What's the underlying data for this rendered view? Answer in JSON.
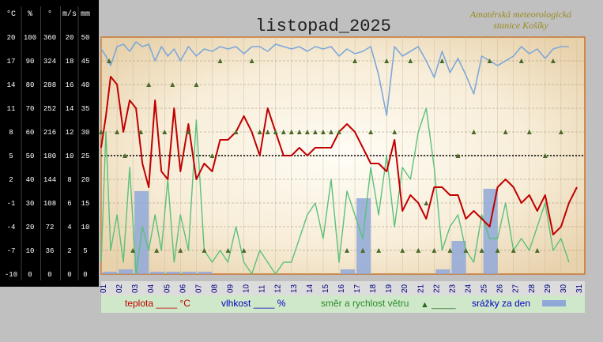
{
  "chart_data": {
    "type": "line",
    "title": "listopad_2025",
    "station": [
      "Amatérská meteorologická",
      "stanice Košíky"
    ],
    "axes": [
      {
        "unit": "°C",
        "ticks": [
          "20",
          "17",
          "14",
          "11",
          "8",
          "5",
          "2",
          "-1",
          "-4",
          "-7",
          "-10"
        ]
      },
      {
        "unit": "%",
        "ticks": [
          "100",
          "90",
          "80",
          "70",
          "60",
          "50",
          "40",
          "30",
          "20",
          "10",
          "0"
        ]
      },
      {
        "unit": "°",
        "ticks": [
          "360",
          "324",
          "288",
          "252",
          "216",
          "180",
          "144",
          "108",
          "72",
          "36",
          "0"
        ]
      },
      {
        "unit": "m/s",
        "ticks": [
          "20",
          "18",
          "16",
          "14",
          "12",
          "10",
          "8",
          "6",
          "4",
          "2",
          "0"
        ]
      },
      {
        "unit": "mm",
        "ticks": [
          "50",
          "45",
          "40",
          "35",
          "30",
          "25",
          "20",
          "15",
          "10",
          "5",
          "0"
        ]
      }
    ],
    "x_ticks": [
      "01",
      "02",
      "03",
      "04",
      "05",
      "06",
      "07",
      "08",
      "09",
      "10",
      "11",
      "12",
      "13",
      "14",
      "15",
      "16",
      "17",
      "18",
      "19",
      "20",
      "21",
      "22",
      "23",
      "24",
      "25",
      "26",
      "27",
      "28",
      "29",
      "30",
      "31"
    ],
    "legend": [
      {
        "label": "teplota ____ °C",
        "color": "#c00000"
      },
      {
        "label": "vlhkost ____ %",
        "color": "#0000c0"
      },
      {
        "label": "směr a rychlost větru",
        "marker": "▲ _____",
        "color": "#2a8a2a"
      },
      {
        "label": "srážky za den",
        "color": "#8fa8d8"
      }
    ],
    "series": [
      {
        "name": "teplota",
        "unit": "°C",
        "color": "#c00000",
        "x": [
          1.0,
          1.3,
          1.6,
          2.0,
          2.4,
          2.8,
          3.2,
          3.6,
          4.0,
          4.4,
          4.8,
          5.2,
          5.6,
          6.0,
          6.5,
          7.0,
          7.5,
          8.0,
          8.5,
          9.0,
          9.5,
          10.0,
          10.5,
          11.0,
          11.5,
          12.0,
          12.5,
          13.0,
          13.5,
          14.0,
          14.5,
          15.0,
          15.5,
          16.0,
          16.5,
          17.0,
          17.5,
          18.0,
          18.5,
          19.0,
          19.5,
          20.0,
          20.5,
          21.0,
          21.5,
          22.0,
          22.5,
          23.0,
          23.5,
          24.0,
          24.5,
          25.0,
          25.5,
          26.0,
          26.5,
          27.0,
          27.5,
          28.0,
          28.5,
          29.0,
          29.5,
          30.0,
          30.5,
          31.0
        ],
        "y": [
          6,
          10,
          15,
          14,
          8,
          12,
          11,
          4,
          1,
          12,
          3,
          2,
          11,
          3,
          9,
          2,
          4,
          3,
          7,
          7,
          8,
          10,
          8,
          5,
          11,
          8,
          5,
          5,
          6,
          5,
          6,
          6,
          6,
          8,
          9,
          8,
          6,
          4,
          4,
          3,
          7,
          -2,
          0,
          -1,
          -3,
          1,
          1,
          0,
          0,
          -3,
          -2,
          -3,
          -4,
          1,
          2,
          1,
          -1,
          0,
          -2,
          0,
          -5,
          -4,
          -1,
          1
        ]
      },
      {
        "name": "vlhkost",
        "unit": "%",
        "color": "#7ea8d8",
        "x": [
          1.0,
          1.3,
          1.6,
          2.0,
          2.4,
          2.8,
          3.2,
          3.6,
          4.0,
          4.4,
          4.8,
          5.2,
          5.6,
          6.0,
          6.5,
          7.0,
          7.5,
          8.0,
          8.5,
          9.0,
          9.5,
          10.0,
          10.5,
          11.0,
          11.5,
          12.0,
          12.5,
          13.0,
          13.5,
          14.0,
          14.5,
          15.0,
          15.5,
          16.0,
          16.5,
          17.0,
          17.5,
          18.0,
          18.5,
          19.0,
          19.5,
          20.0,
          20.5,
          21.0,
          21.5,
          22.0,
          22.5,
          23.0,
          23.5,
          24.0,
          24.5,
          25.0,
          25.5,
          26.0,
          26.5,
          27.0,
          27.5,
          28.0,
          28.5,
          29.0,
          29.5,
          30.0,
          30.5
        ],
        "y": [
          95,
          92,
          88,
          96,
          97,
          94,
          98,
          96,
          97,
          90,
          96,
          92,
          95,
          90,
          96,
          92,
          95,
          94,
          96,
          95,
          96,
          93,
          96,
          96,
          94,
          97,
          96,
          95,
          96,
          94,
          96,
          95,
          96,
          92,
          95,
          93,
          94,
          96,
          84,
          67,
          96,
          92,
          94,
          96,
          90,
          83,
          94,
          85,
          91,
          84,
          76,
          92,
          90,
          88,
          90,
          92,
          96,
          93,
          95,
          91,
          95,
          96,
          96
        ]
      },
      {
        "name": "rychlost větru",
        "unit": "m/s",
        "color": "#5cc07a",
        "x": [
          1.0,
          1.3,
          1.6,
          2.0,
          2.4,
          2.8,
          3.2,
          3.6,
          4.0,
          4.4,
          4.8,
          5.2,
          5.6,
          6.0,
          6.5,
          7.0,
          7.5,
          8.0,
          8.5,
          9.0,
          9.5,
          10.0,
          10.5,
          11.0,
          11.5,
          12.0,
          12.5,
          13.0,
          13.5,
          14.0,
          14.5,
          15.0,
          15.5,
          16.0,
          16.5,
          17.0,
          17.5,
          18.0,
          18.5,
          19.0,
          19.5,
          20.0,
          20.5,
          21.0,
          21.5,
          22.0,
          22.5,
          23.0,
          23.5,
          24.0,
          24.5,
          25.0,
          25.5,
          26.0,
          26.5,
          27.0,
          27.5,
          28.0,
          28.5,
          29.0,
          29.5,
          30.0,
          30.5
        ],
        "y": [
          1,
          12,
          2,
          5,
          1,
          9,
          0,
          4,
          2,
          5,
          2,
          8,
          1,
          5,
          2,
          13,
          2,
          1,
          2,
          1,
          4,
          1,
          0,
          2,
          1,
          0,
          1,
          1,
          3,
          5,
          6,
          3,
          8,
          1,
          7,
          5,
          3,
          9,
          5,
          10,
          4,
          9,
          8,
          12,
          14,
          9,
          2,
          4,
          5,
          2,
          1,
          5,
          3,
          3,
          6,
          2,
          3,
          2,
          4,
          6,
          2,
          3,
          1
        ]
      },
      {
        "name": "srážky za den",
        "unit": "mm",
        "x": [
          1,
          2,
          3,
          4,
          5,
          6,
          7,
          8,
          9,
          10,
          11,
          12,
          13,
          14,
          15,
          16,
          17,
          18,
          19,
          20,
          21,
          22,
          23,
          24,
          25,
          26,
          27,
          28,
          29,
          30,
          31
        ],
        "y": [
          0.5,
          1,
          17.5,
          0.5,
          0.5,
          0.5,
          0.5,
          0,
          0,
          0,
          0,
          0,
          0,
          0,
          0,
          1,
          16,
          0,
          0,
          0,
          0,
          1,
          7,
          0,
          18,
          0,
          0,
          0,
          0,
          0,
          0
        ]
      },
      {
        "name": "směr větru",
        "unit": "°",
        "x": [
          1.0,
          1.5,
          2.0,
          2.5,
          3.0,
          3.5,
          4.0,
          4.5,
          5.0,
          5.5,
          6.0,
          6.5,
          7.0,
          7.5,
          8.0,
          8.5,
          9.0,
          9.5,
          10.0,
          10.5,
          11.0,
          11.5,
          12.0,
          12.5,
          13.0,
          13.5,
          14.0,
          14.5,
          15.0,
          15.5,
          16.0,
          16.5,
          17.0,
          17.5,
          18.0,
          18.5,
          19.0,
          19.5,
          20.0,
          20.5,
          21.0,
          21.5,
          22.0,
          22.5,
          23.0,
          23.5,
          24.0,
          24.5,
          25.0,
          25.5,
          26.0,
          26.5,
          27.0,
          27.5,
          28.0,
          28.5,
          29.0,
          29.5,
          30.0
        ],
        "y": [
          216,
          324,
          216,
          180,
          36,
          216,
          288,
          36,
          216,
          288,
          36,
          216,
          288,
          36,
          180,
          324,
          36,
          216,
          36,
          324,
          216,
          216,
          216,
          216,
          216,
          216,
          216,
          216,
          216,
          216,
          216,
          36,
          324,
          36,
          216,
          36,
          324,
          216,
          36,
          324,
          36,
          108,
          36,
          324,
          36,
          180,
          36,
          216,
          36,
          324,
          36,
          216,
          36,
          324,
          216,
          36,
          180,
          324,
          216
        ]
      }
    ],
    "reference_line": {
      "axis": "°C",
      "value": 5,
      "style": "dotted"
    },
    "grid": true
  }
}
